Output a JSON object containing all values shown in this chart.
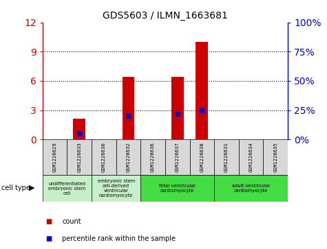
{
  "title": "GDS5603 / ILMN_1663681",
  "samples": [
    "GSM1226629",
    "GSM1226633",
    "GSM1226630",
    "GSM1226632",
    "GSM1226636",
    "GSM1226637",
    "GSM1226638",
    "GSM1226631",
    "GSM1226634",
    "GSM1226635"
  ],
  "counts": [
    0,
    2.1,
    0,
    6.4,
    0,
    6.4,
    10.0,
    0,
    0,
    0
  ],
  "percentile_ranks": [
    0,
    5,
    0,
    20,
    0,
    22,
    25,
    0,
    0,
    0
  ],
  "ylim_left": [
    0,
    12
  ],
  "ylim_right": [
    0,
    100
  ],
  "yticks_left": [
    0,
    3,
    6,
    9,
    12
  ],
  "yticks_right": [
    0,
    25,
    50,
    75,
    100
  ],
  "ytick_labels_right": [
    "0%",
    "25%",
    "50%",
    "75%",
    "100%"
  ],
  "cell_types": [
    {
      "label": "undifferentiated\nembryonic stem\ncell",
      "start": 0,
      "end": 2,
      "color": "#c8f0c8"
    },
    {
      "label": "embryonic stem\ncell-derived\nventricular\ncardiomyocyte",
      "start": 2,
      "end": 4,
      "color": "#c8f0c8"
    },
    {
      "label": "fetal ventricular\ncardiomyocyte",
      "start": 4,
      "end": 7,
      "color": "#44dd44"
    },
    {
      "label": "adult ventricular\ncardiomyocyte",
      "start": 7,
      "end": 10,
      "color": "#44dd44"
    }
  ],
  "sample_cell_color": "#d8d8d8",
  "bar_color": "#cc0000",
  "marker_color": "#0000cc",
  "background_color": "#ffffff",
  "tick_label_color_left": "#cc0000",
  "tick_label_color_right": "#0000cc",
  "bar_width": 0.5
}
